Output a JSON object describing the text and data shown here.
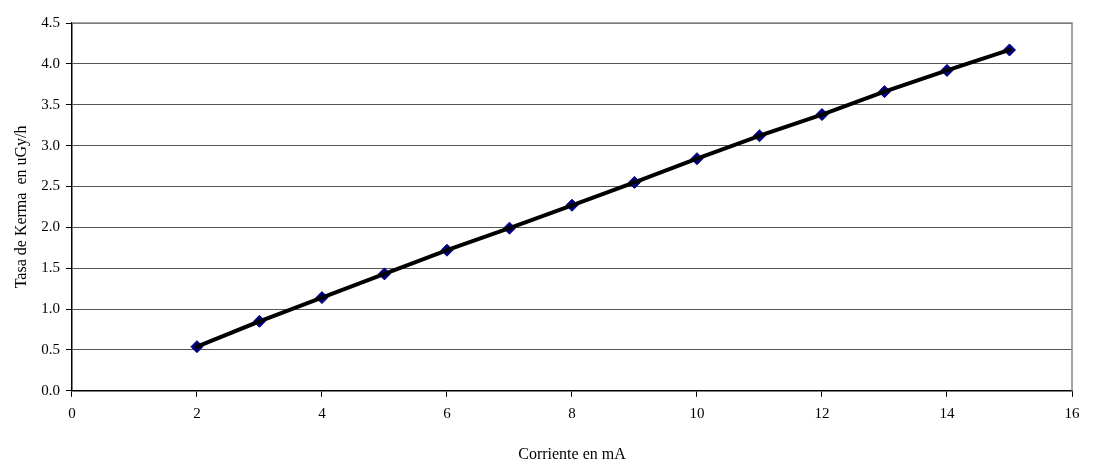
{
  "chart_data": {
    "type": "scatter",
    "xlabel": "Corriente en mA",
    "ylabel": "Tasa de Kerma  en uGy/h",
    "x": [
      2,
      3,
      4,
      5,
      6,
      7,
      8,
      9,
      10,
      11,
      12,
      13,
      14,
      15
    ],
    "series": [
      {
        "type": "scatter",
        "color": "#000080",
        "marker": "diamond",
        "values": [
          0.54,
          0.85,
          1.14,
          1.43,
          1.72,
          1.99,
          2.27,
          2.55,
          2.84,
          3.12,
          3.38,
          3.66,
          3.92,
          4.17
        ]
      },
      {
        "type": "line",
        "color": "#000000",
        "marker": "none",
        "line_style": "solid",
        "values": [
          0.54,
          0.85,
          1.14,
          1.43,
          1.72,
          1.99,
          2.27,
          2.55,
          2.84,
          3.12,
          3.38,
          3.66,
          3.92,
          4.17
        ]
      }
    ],
    "xlim": [
      0,
      16
    ],
    "xticks": [
      0,
      2,
      4,
      6,
      8,
      10,
      12,
      14,
      16
    ],
    "ylim": [
      0,
      4.5
    ],
    "yticks": [
      {
        "value": 0,
        "label": "0.0"
      },
      {
        "value": 0.5,
        "label": "0.5"
      },
      {
        "value": 1,
        "label": "1.0"
      },
      {
        "value": 1.5,
        "label": "1.5"
      },
      {
        "value": 2,
        "label": "2.0"
      },
      {
        "value": 2.5,
        "label": "2.5"
      },
      {
        "value": 3,
        "label": "3.0"
      },
      {
        "value": 3.5,
        "label": "3.5"
      },
      {
        "value": 4,
        "label": "4.0"
      },
      {
        "value": 4.5,
        "label": "4.5"
      }
    ],
    "grid": "y",
    "legend": false
  }
}
